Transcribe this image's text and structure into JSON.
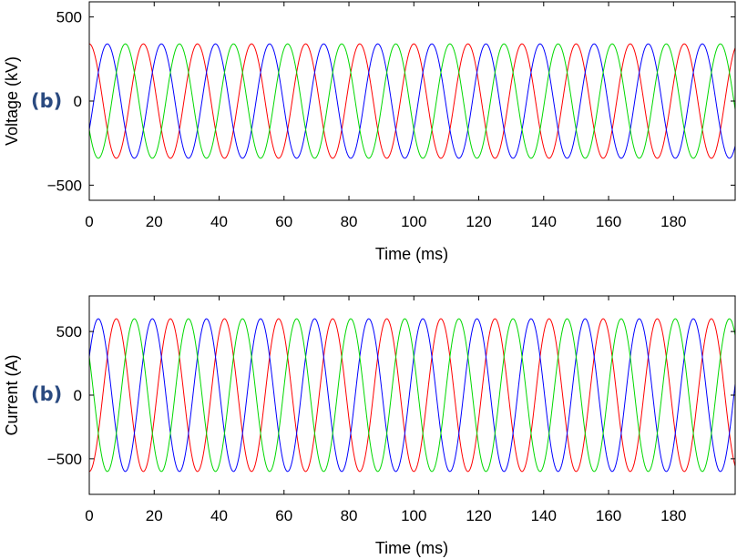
{
  "colors": {
    "phase_a": "#ff0000",
    "phase_b": "#0000ff",
    "phase_c": "#00d800",
    "panel_label": "#2a4a80",
    "axis": "#000000"
  },
  "chart_data": [
    {
      "type": "line",
      "panel_label": "(b)",
      "xlabel": "Time (ms)",
      "ylabel": "Voltage (kV)",
      "xlim": [
        0,
        199
      ],
      "ylim": [
        -590,
        590
      ],
      "xticks": [
        0,
        20,
        40,
        60,
        80,
        100,
        120,
        140,
        160,
        180
      ],
      "yticks": [
        -500,
        0,
        500
      ],
      "ytick_labels": [
        "−500",
        "0",
        "500"
      ],
      "grid": false,
      "frequency_hz": 60,
      "series": [
        {
          "color": "#ff0000",
          "amplitude": 340,
          "phase_deg": 90
        },
        {
          "color": "#0000ff",
          "amplitude": 340,
          "phase_deg": -30
        },
        {
          "color": "#00d800",
          "amplitude": 340,
          "phase_deg": 210
        }
      ]
    },
    {
      "type": "line",
      "panel_label": "(b)",
      "xlabel": "Time (ms)",
      "ylabel": "Current (A)",
      "xlim": [
        0,
        199
      ],
      "ylim": [
        -780,
        780
      ],
      "xticks": [
        0,
        20,
        40,
        60,
        80,
        100,
        120,
        140,
        160,
        180
      ],
      "yticks": [
        -500,
        0,
        500
      ],
      "ytick_labels": [
        "−500",
        "0",
        "500"
      ],
      "grid": false,
      "frequency_hz": 60,
      "series": [
        {
          "color": "#ff0000",
          "amplitude": 600,
          "phase_deg": -90
        },
        {
          "color": "#0000ff",
          "amplitude": 600,
          "phase_deg": 30
        },
        {
          "color": "#00d800",
          "amplitude": 600,
          "phase_deg": 150
        }
      ]
    }
  ]
}
